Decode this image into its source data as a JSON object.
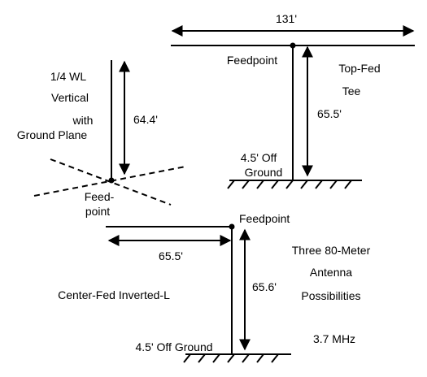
{
  "tee": {
    "span": "131'",
    "feedpoint": "Feedpoint",
    "title_line1": "Top-Fed",
    "title_line2": "Tee",
    "height": "65.5'",
    "ground_line1": "4.5' Off",
    "ground_line2": "Ground"
  },
  "vertical": {
    "title_line1": "1/4 WL",
    "title_line2": "Vertical",
    "title_line3": "with",
    "title_line4": "Ground Plane",
    "height": "64.4'",
    "feed_line1": "Feed-",
    "feed_line2": "point"
  },
  "inverted_l": {
    "feedpoint": "Feedpoint",
    "horizontal": "65.5'",
    "vertical": "65.6'",
    "title": "Center-Fed Inverted-L",
    "ground": "4.5' Off Ground"
  },
  "caption": {
    "line1": "Three 80-Meter",
    "line2": "Antenna",
    "line3": "Possibilities",
    "frequency": "3.7 MHz"
  },
  "colors": {
    "ink": "#000000",
    "background": "#ffffff"
  }
}
